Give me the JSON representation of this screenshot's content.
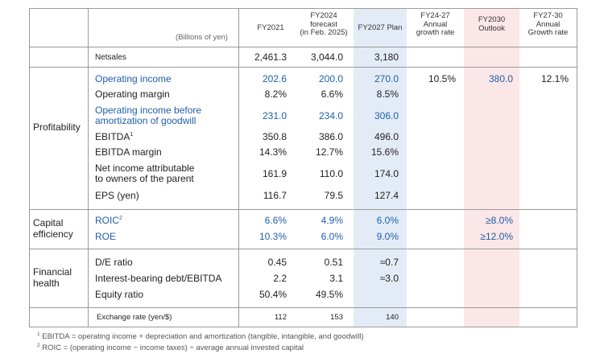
{
  "table": {
    "unit_label": "(Billions of yen)",
    "columns": [
      "FY2021",
      "FY2024\nforecast\n(in Feb. 2025)",
      "FY2027 Plan",
      "FY24-27\nAnnual\ngrowth rate",
      "FY2030\nOutlook",
      "FY27-30\nAnnual\nGrowth rate"
    ],
    "groups": {
      "profitability": "Profitability",
      "capital_efficiency_1": "Capital",
      "capital_efficiency_2": "efficiency",
      "financial_health_1": "Financial",
      "financial_health_2": "health"
    },
    "rows": {
      "net_sales": {
        "label": "Netsales",
        "fy2021": "2,461.3",
        "fy2024": "3,044.0",
        "fy2027": "3,180"
      },
      "operating_income": {
        "label": "Operating income",
        "fy2021": "202.6",
        "fy2024": "200.0",
        "fy2027": "270.0",
        "growth_24_27": "10.5%",
        "fy2030": "380.0",
        "growth_27_30": "12.1%"
      },
      "operating_margin": {
        "label": "Operating margin",
        "fy2021": "8.2%",
        "fy2024": "6.6%",
        "fy2027": "8.5%"
      },
      "oi_before_goodwill": {
        "label_1": "Operating income before",
        "label_2": "amortization of goodwill",
        "fy2021": "231.0",
        "fy2024": "234.0",
        "fy2027": "306.0"
      },
      "ebitda": {
        "label": "EBITDA",
        "sup": "1",
        "fy2021": "350.8",
        "fy2024": "386.0",
        "fy2027": "496.0"
      },
      "ebitda_margin": {
        "label": "EBITDA margin",
        "fy2021": "14.3%",
        "fy2024": "12.7%",
        "fy2027": "15.6%"
      },
      "net_income": {
        "label_1": "Net income attributable",
        "label_2": "to owners of the parent",
        "fy2021": "161.9",
        "fy2024": "110.0",
        "fy2027": "174.0"
      },
      "eps": {
        "label": "EPS (yen)",
        "fy2021": "116.7",
        "fy2024": "79.5",
        "fy2027": "127.4"
      },
      "roic": {
        "label": "ROIC",
        "sup": "2",
        "fy2021": "6.6%",
        "fy2024": "4.9%",
        "fy2027": "6.0%",
        "fy2030": "≥8.0%"
      },
      "roe": {
        "label": "ROE",
        "fy2021": "10.3%",
        "fy2024": "6.0%",
        "fy2027": "9.0%",
        "fy2030": "≥12.0%"
      },
      "de_ratio": {
        "label": "D/E ratio",
        "fy2021": "0.45",
        "fy2024": "0.51",
        "fy2027": "≈0.7"
      },
      "debt_ebitda": {
        "label": "Interest-bearing debt/EBITDA",
        "fy2021": "2.2",
        "fy2024": "3.1",
        "fy2027": "≈3.0"
      },
      "equity_ratio": {
        "label": "Equity ratio",
        "fy2021": "50.4%",
        "fy2024": "49.5%"
      },
      "exchange_rate": {
        "label": "Exchange rate (yen/$)",
        "fy2021": "112",
        "fy2024": "153",
        "fy2027": "140"
      }
    }
  },
  "footnotes": {
    "note1_num": "1",
    "note1": " EBITDA = operating income + depreciation and amortization (tangible, intangible, and goodwill)",
    "note2_num": "2",
    "note2": " ROIC = (operating income − income taxes) ÷ average annual invested capital"
  },
  "colors": {
    "plan_column": "#e3ecf6",
    "outlook_column": "#fbe6e8",
    "highlight_text": "#1f5fa9",
    "grid": "#9a9a9a"
  }
}
